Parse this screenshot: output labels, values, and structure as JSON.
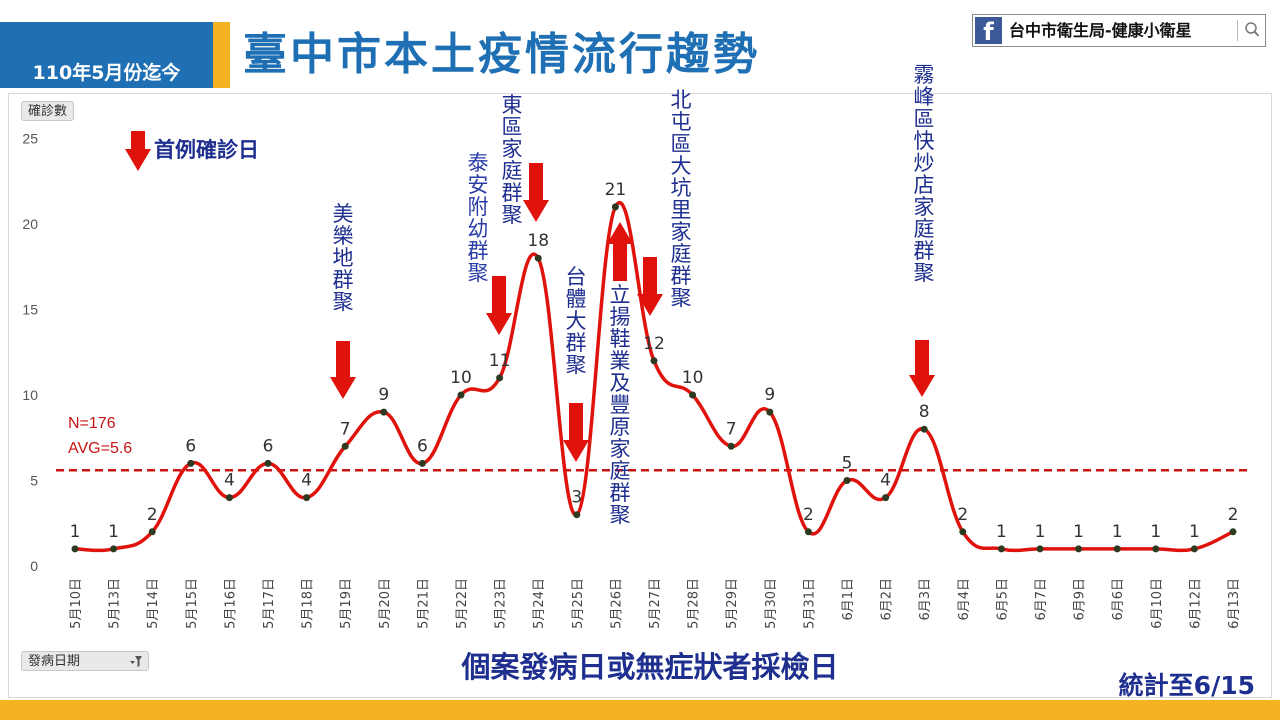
{
  "header": {
    "badge": "110年5月份迄今",
    "title": "臺中市本土疫情流行趨勢"
  },
  "facebook": {
    "logo": "f",
    "label": "台中市衛生局-健康小衛星",
    "search_icon": "search-icon"
  },
  "chart_data": {
    "type": "line",
    "title": "臺中市本土疫情流行趨勢",
    "ylabel": "確診數",
    "xlabel": "個案發病日或無症狀者採檢日",
    "x_filter_label": "發病日期",
    "categories": [
      "5月10日",
      "5月13日",
      "5月14日",
      "5月15日",
      "5月16日",
      "5月17日",
      "5月18日",
      "5月19日",
      "5月20日",
      "5月21日",
      "5月22日",
      "5月23日",
      "5月24日",
      "5月25日",
      "5月26日",
      "5月27日",
      "5月28日",
      "5月29日",
      "5月30日",
      "5月31日",
      "6月1日",
      "6月2日",
      "6月3日",
      "6月4日",
      "6月5日",
      "6月7日",
      "6月9日",
      "6月6日",
      "6月10日",
      "6月12日",
      "6月13日"
    ],
    "series": [
      {
        "values": [
          1,
          1,
          2,
          6,
          4,
          6,
          4,
          7,
          9,
          6,
          10,
          11,
          18,
          3,
          21,
          12,
          10,
          7,
          9,
          2,
          5,
          4,
          8,
          2,
          1,
          1,
          1,
          1,
          1,
          1,
          2
        ]
      }
    ],
    "ylim": [
      0,
      25
    ],
    "yticks": [
      0,
      5,
      10,
      15,
      20,
      25
    ],
    "grid": false,
    "line_color": "#e0120c",
    "point_color": "#2e3a1f",
    "average_line": {
      "value": 5.6,
      "label_n": "N=176",
      "label_avg": "AVG=5.6",
      "color": "#c81414"
    },
    "legend": {
      "label": "首例確診日",
      "position": "top-left"
    },
    "annotations": [
      {
        "text": "美樂地群聚",
        "category": "5月19日",
        "arrow": "down",
        "color": "#1f2f8f"
      },
      {
        "text": "泰安附幼群聚",
        "category": "5月23日",
        "arrow": "down",
        "color": "#2a3ca8"
      },
      {
        "text": "東區家庭群聚",
        "category": "5月24日",
        "arrow": "down",
        "color": "#1f2f8f"
      },
      {
        "text": "台體大群聚",
        "category": "5月25日",
        "arrow": "down",
        "color": "#1f2f8f"
      },
      {
        "text": "立揚鞋業及豐原家庭群聚",
        "category": "5月26日",
        "arrow": "up",
        "color": "#1f2f8f"
      },
      {
        "text": "北屯區大坑里家庭群聚",
        "category": "5月27日",
        "arrow": "down",
        "color": "#1f2f8f"
      },
      {
        "text": "霧峰區快炒店家庭群聚",
        "category": "6月3日",
        "arrow": "down",
        "color": "#1f2f8f"
      }
    ],
    "footnote": "統計至6/15"
  },
  "colors": {
    "header_blue": "#1f6fb4",
    "accent_yellow": "#f4b321",
    "arrow_red": "#e0120c"
  }
}
